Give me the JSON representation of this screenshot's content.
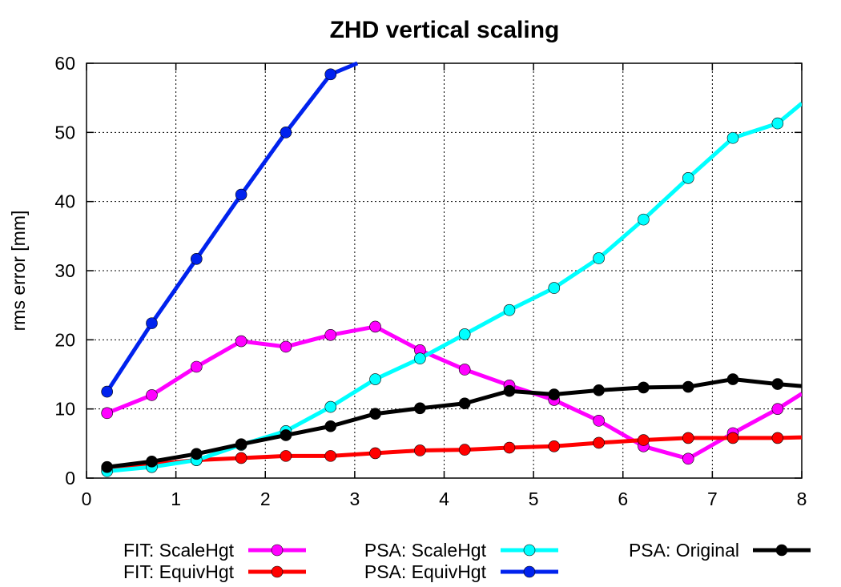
{
  "chart_data": {
    "type": "line",
    "title": "ZHD vertical scaling",
    "xlabel": "",
    "ylabel": "rms error [mm]",
    "xlim": [
      0,
      8
    ],
    "ylim": [
      0,
      60
    ],
    "x_ticks": [
      "0",
      "1",
      "2",
      "3",
      "4",
      "5",
      "6",
      "7",
      "8"
    ],
    "y_ticks": [
      "0",
      "10",
      "20",
      "30",
      "40",
      "50",
      "60"
    ],
    "grid": true,
    "legend_position": "bottom",
    "series": [
      {
        "name": "FIT: ScaleHgt",
        "color": "#ff00ff",
        "x": [
          0.23,
          0.73,
          1.23,
          1.73,
          2.23,
          2.73,
          3.23,
          3.73,
          4.23,
          4.73,
          5.23,
          5.73,
          6.23,
          6.73,
          7.23,
          7.73,
          8.0
        ],
        "y": [
          9.4,
          12.0,
          16.1,
          19.8,
          19.0,
          20.7,
          21.9,
          18.5,
          15.7,
          13.4,
          11.3,
          8.3,
          4.6,
          2.8,
          6.5,
          10.0,
          12.2
        ]
      },
      {
        "name": "FIT: EquivHgt",
        "color": "#ff0000",
        "x": [
          0.23,
          0.73,
          1.23,
          1.73,
          2.23,
          2.73,
          3.23,
          3.73,
          4.23,
          4.73,
          5.23,
          5.73,
          6.23,
          6.73,
          7.23,
          7.73,
          8.0
        ],
        "y": [
          1.4,
          2.0,
          2.6,
          2.9,
          3.2,
          3.2,
          3.6,
          4.0,
          4.1,
          4.4,
          4.6,
          5.1,
          5.5,
          5.8,
          5.8,
          5.8,
          5.9
        ]
      },
      {
        "name": "PSA: ScaleHgt",
        "color": "#00ffff",
        "x": [
          0.23,
          0.73,
          1.23,
          1.73,
          2.23,
          2.73,
          3.23,
          3.73,
          4.23,
          4.73,
          5.23,
          5.73,
          6.23,
          6.73,
          7.23,
          7.73,
          8.0
        ],
        "y": [
          1.0,
          1.6,
          2.6,
          4.8,
          6.8,
          10.3,
          14.3,
          17.3,
          20.8,
          24.3,
          27.5,
          31.8,
          37.4,
          43.4,
          49.2,
          51.3,
          54.2
        ]
      },
      {
        "name": "PSA: EquivHgt",
        "color": "#0022ee",
        "x": [
          0.23,
          0.73,
          1.23,
          1.73,
          2.23,
          2.73,
          3.03
        ],
        "y": [
          12.5,
          22.4,
          31.7,
          41.0,
          50.0,
          58.4,
          60.0
        ]
      },
      {
        "name": "PSA: Original",
        "color": "#000000",
        "x": [
          0.23,
          0.73,
          1.23,
          1.73,
          2.23,
          2.73,
          3.23,
          3.73,
          4.23,
          4.73,
          5.23,
          5.73,
          6.23,
          6.73,
          7.23,
          7.73,
          8.0
        ],
        "y": [
          1.6,
          2.4,
          3.5,
          4.9,
          6.2,
          7.5,
          9.3,
          10.1,
          10.8,
          12.6,
          12.1,
          12.7,
          13.1,
          13.2,
          14.3,
          13.6,
          13.3
        ]
      }
    ]
  }
}
